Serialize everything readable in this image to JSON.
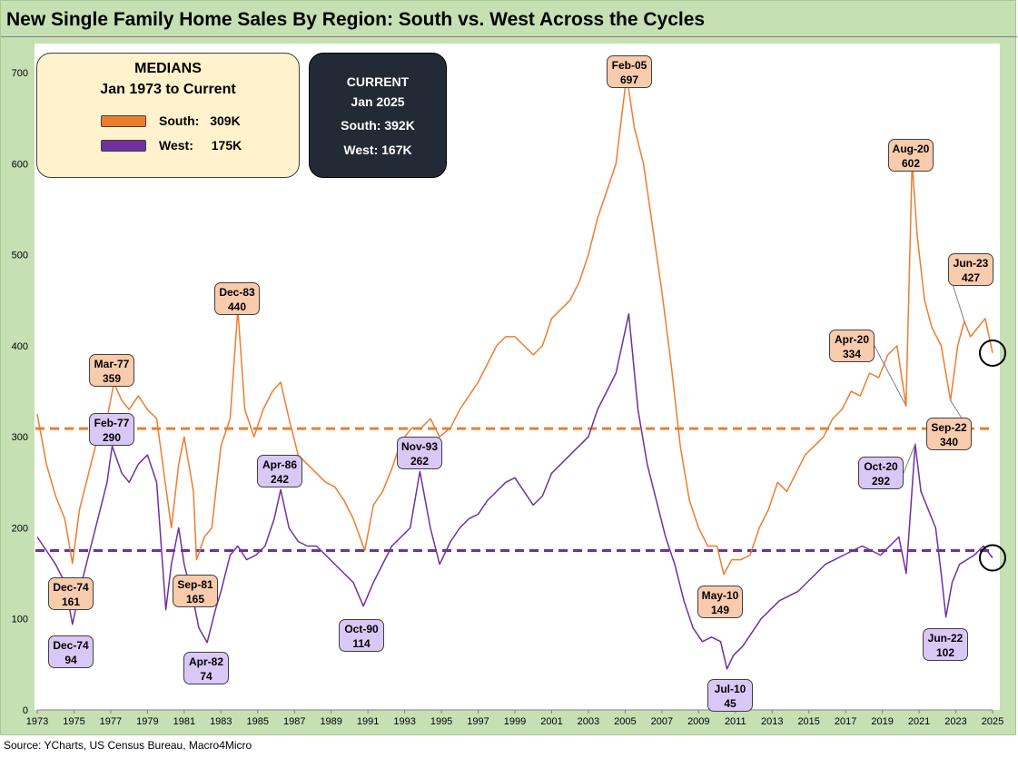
{
  "title": "New Single Family Home Sales By Region: South vs. West Across the Cycles",
  "source": "Source: YCharts, US Census Bureau, Macro4Micro",
  "medians_box": {
    "heading": "MEDIANS",
    "subheading": "Jan 1973 to Current",
    "south_label": "South:",
    "south_value": "309K",
    "west_label": "West:",
    "west_value": "175K"
  },
  "current_box": {
    "heading": "CURRENT",
    "date": "Jan 2025",
    "south": "South:  392K",
    "west": "West:  167K"
  },
  "colors": {
    "south": "#ed7d31",
    "west": "#7030a0",
    "south_label_bg": "#f8cbad",
    "west_label_bg": "#d9c8f5",
    "background": "#c6e0b4"
  },
  "chart_data": {
    "type": "line",
    "title": "New Single Family Home Sales By Region: South vs. West Across the Cycles",
    "xlabel": "",
    "ylabel": "",
    "xlim": [
      1973,
      2025
    ],
    "ylim": [
      0,
      740
    ],
    "y_ticks": [
      0,
      100,
      200,
      300,
      400,
      500,
      600,
      700
    ],
    "x_ticks": [
      1973,
      1975,
      1977,
      1979,
      1981,
      1983,
      1985,
      1987,
      1989,
      1991,
      1993,
      1995,
      1997,
      1999,
      2001,
      2003,
      2005,
      2007,
      2009,
      2011,
      2013,
      2015,
      2017,
      2019,
      2021,
      2023,
      2025
    ],
    "grid": false,
    "reference_lines": [
      {
        "series": "South",
        "value": 309,
        "style": "dashed"
      },
      {
        "series": "West",
        "value": 175,
        "style": "dashed"
      }
    ],
    "series": [
      {
        "name": "South",
        "color": "#ed7d31",
        "points": [
          [
            1973.0,
            325
          ],
          [
            1973.5,
            270
          ],
          [
            1974.0,
            235
          ],
          [
            1974.5,
            210
          ],
          [
            1974.92,
            161
          ],
          [
            1975.3,
            220
          ],
          [
            1975.8,
            260
          ],
          [
            1976.3,
            300
          ],
          [
            1976.8,
            320
          ],
          [
            1977.17,
            359
          ],
          [
            1977.6,
            340
          ],
          [
            1978.0,
            330
          ],
          [
            1978.5,
            345
          ],
          [
            1979.0,
            330
          ],
          [
            1979.5,
            320
          ],
          [
            1980.0,
            245
          ],
          [
            1980.3,
            200
          ],
          [
            1980.7,
            270
          ],
          [
            1981.0,
            300
          ],
          [
            1981.5,
            240
          ],
          [
            1981.67,
            165
          ],
          [
            1982.1,
            190
          ],
          [
            1982.5,
            200
          ],
          [
            1983.0,
            290
          ],
          [
            1983.5,
            320
          ],
          [
            1983.92,
            440
          ],
          [
            1984.3,
            330
          ],
          [
            1984.8,
            300
          ],
          [
            1985.3,
            330
          ],
          [
            1985.8,
            350
          ],
          [
            1986.25,
            360
          ],
          [
            1986.7,
            320
          ],
          [
            1987.2,
            280
          ],
          [
            1987.7,
            270
          ],
          [
            1988.2,
            260
          ],
          [
            1988.7,
            250
          ],
          [
            1989.2,
            245
          ],
          [
            1989.7,
            230
          ],
          [
            1990.2,
            210
          ],
          [
            1990.83,
            175
          ],
          [
            1991.3,
            225
          ],
          [
            1991.8,
            240
          ],
          [
            1992.3,
            265
          ],
          [
            1992.8,
            295
          ],
          [
            1993.4,
            310
          ],
          [
            1993.92,
            310
          ],
          [
            1994.4,
            320
          ],
          [
            1994.9,
            300
          ],
          [
            1995.5,
            310
          ],
          [
            1996.0,
            330
          ],
          [
            1996.5,
            345
          ],
          [
            1997.0,
            360
          ],
          [
            1997.5,
            380
          ],
          [
            1998.0,
            400
          ],
          [
            1998.5,
            410
          ],
          [
            1999.0,
            410
          ],
          [
            1999.5,
            400
          ],
          [
            2000.0,
            390
          ],
          [
            2000.5,
            400
          ],
          [
            2001.0,
            430
          ],
          [
            2001.5,
            440
          ],
          [
            2002.0,
            450
          ],
          [
            2002.5,
            470
          ],
          [
            2003.0,
            500
          ],
          [
            2003.5,
            540
          ],
          [
            2004.0,
            570
          ],
          [
            2004.5,
            600
          ],
          [
            2005.08,
            697
          ],
          [
            2005.5,
            640
          ],
          [
            2006.0,
            600
          ],
          [
            2006.5,
            530
          ],
          [
            2007.0,
            460
          ],
          [
            2007.5,
            380
          ],
          [
            2008.0,
            290
          ],
          [
            2008.5,
            230
          ],
          [
            2009.0,
            200
          ],
          [
            2009.5,
            180
          ],
          [
            2010.0,
            180
          ],
          [
            2010.37,
            149
          ],
          [
            2010.8,
            165
          ],
          [
            2011.3,
            165
          ],
          [
            2011.8,
            170
          ],
          [
            2012.3,
            200
          ],
          [
            2012.8,
            220
          ],
          [
            2013.3,
            250
          ],
          [
            2013.8,
            240
          ],
          [
            2014.3,
            260
          ],
          [
            2014.8,
            280
          ],
          [
            2015.3,
            290
          ],
          [
            2015.8,
            300
          ],
          [
            2016.3,
            320
          ],
          [
            2016.8,
            330
          ],
          [
            2017.3,
            350
          ],
          [
            2017.8,
            345
          ],
          [
            2018.3,
            370
          ],
          [
            2018.8,
            365
          ],
          [
            2019.3,
            390
          ],
          [
            2019.8,
            400
          ],
          [
            2020.29,
            334
          ],
          [
            2020.62,
            602
          ],
          [
            2020.9,
            520
          ],
          [
            2021.3,
            450
          ],
          [
            2021.7,
            420
          ],
          [
            2022.2,
            400
          ],
          [
            2022.71,
            340
          ],
          [
            2023.1,
            400
          ],
          [
            2023.46,
            427
          ],
          [
            2023.8,
            410
          ],
          [
            2024.2,
            420
          ],
          [
            2024.6,
            430
          ],
          [
            2025.0,
            392
          ]
        ]
      },
      {
        "name": "West",
        "color": "#7030a0",
        "points": [
          [
            1973.0,
            190
          ],
          [
            1973.5,
            175
          ],
          [
            1974.0,
            160
          ],
          [
            1974.5,
            140
          ],
          [
            1974.92,
            94
          ],
          [
            1975.3,
            130
          ],
          [
            1975.8,
            170
          ],
          [
            1976.3,
            210
          ],
          [
            1976.8,
            250
          ],
          [
            1977.08,
            290
          ],
          [
            1977.6,
            260
          ],
          [
            1978.0,
            250
          ],
          [
            1978.5,
            270
          ],
          [
            1979.0,
            280
          ],
          [
            1979.5,
            250
          ],
          [
            1980.0,
            110
          ],
          [
            1980.3,
            160
          ],
          [
            1980.7,
            200
          ],
          [
            1981.0,
            160
          ],
          [
            1981.5,
            120
          ],
          [
            1981.8,
            90
          ],
          [
            1982.25,
            74
          ],
          [
            1982.7,
            110
          ],
          [
            1983.0,
            130
          ],
          [
            1983.5,
            170
          ],
          [
            1983.92,
            180
          ],
          [
            1984.4,
            165
          ],
          [
            1984.9,
            170
          ],
          [
            1985.4,
            180
          ],
          [
            1985.9,
            210
          ],
          [
            1986.25,
            242
          ],
          [
            1986.7,
            200
          ],
          [
            1987.2,
            185
          ],
          [
            1987.7,
            180
          ],
          [
            1988.2,
            180
          ],
          [
            1988.7,
            170
          ],
          [
            1989.2,
            160
          ],
          [
            1989.7,
            150
          ],
          [
            1990.2,
            140
          ],
          [
            1990.75,
            114
          ],
          [
            1991.3,
            140
          ],
          [
            1991.8,
            160
          ],
          [
            1992.3,
            180
          ],
          [
            1992.8,
            190
          ],
          [
            1993.3,
            200
          ],
          [
            1993.83,
            262
          ],
          [
            1994.4,
            200
          ],
          [
            1994.9,
            160
          ],
          [
            1995.5,
            185
          ],
          [
            1996.0,
            200
          ],
          [
            1996.5,
            210
          ],
          [
            1997.0,
            215
          ],
          [
            1997.5,
            230
          ],
          [
            1998.0,
            240
          ],
          [
            1998.5,
            250
          ],
          [
            1999.0,
            255
          ],
          [
            1999.5,
            240
          ],
          [
            2000.0,
            225
          ],
          [
            2000.5,
            235
          ],
          [
            2001.0,
            260
          ],
          [
            2001.5,
            270
          ],
          [
            2002.0,
            280
          ],
          [
            2002.5,
            290
          ],
          [
            2003.0,
            300
          ],
          [
            2003.5,
            330
          ],
          [
            2004.0,
            350
          ],
          [
            2004.5,
            370
          ],
          [
            2005.2,
            435
          ],
          [
            2005.7,
            330
          ],
          [
            2006.2,
            270
          ],
          [
            2006.7,
            230
          ],
          [
            2007.2,
            190
          ],
          [
            2007.7,
            160
          ],
          [
            2008.2,
            120
          ],
          [
            2008.7,
            90
          ],
          [
            2009.2,
            75
          ],
          [
            2009.7,
            80
          ],
          [
            2010.2,
            75
          ],
          [
            2010.54,
            45
          ],
          [
            2010.9,
            60
          ],
          [
            2011.4,
            70
          ],
          [
            2011.9,
            85
          ],
          [
            2012.4,
            100
          ],
          [
            2012.9,
            110
          ],
          [
            2013.4,
            120
          ],
          [
            2013.9,
            125
          ],
          [
            2014.4,
            130
          ],
          [
            2014.9,
            140
          ],
          [
            2015.4,
            150
          ],
          [
            2015.9,
            160
          ],
          [
            2016.4,
            165
          ],
          [
            2016.9,
            170
          ],
          [
            2017.4,
            175
          ],
          [
            2017.9,
            180
          ],
          [
            2018.4,
            175
          ],
          [
            2018.9,
            170
          ],
          [
            2019.4,
            180
          ],
          [
            2019.9,
            190
          ],
          [
            2020.3,
            150
          ],
          [
            2020.79,
            292
          ],
          [
            2021.1,
            240
          ],
          [
            2021.5,
            220
          ],
          [
            2021.9,
            200
          ],
          [
            2022.2,
            150
          ],
          [
            2022.46,
            102
          ],
          [
            2022.8,
            140
          ],
          [
            2023.2,
            160
          ],
          [
            2023.6,
            165
          ],
          [
            2024.0,
            170
          ],
          [
            2024.5,
            180
          ],
          [
            2025.0,
            167
          ]
        ]
      }
    ],
    "annotations": [
      {
        "series": "South",
        "label": "Feb-05",
        "value": "697",
        "x": 2005.08,
        "y": 697
      },
      {
        "series": "South",
        "label": "Dec-83",
        "value": "440",
        "x": 1983.92,
        "y": 440
      },
      {
        "series": "South",
        "label": "Mar-77",
        "value": "359",
        "x": 1977.17,
        "y": 359
      },
      {
        "series": "South",
        "label": "Dec-74",
        "value": "161",
        "x": 1974.92,
        "y": 161
      },
      {
        "series": "South",
        "label": "Sep-81",
        "value": "165",
        "x": 1981.67,
        "y": 165
      },
      {
        "series": "South",
        "label": "May-10",
        "value": "149",
        "x": 2010.37,
        "y": 149
      },
      {
        "series": "South",
        "label": "Aug-20",
        "value": "602",
        "x": 2020.62,
        "y": 602
      },
      {
        "series": "South",
        "label": "Apr-20",
        "value": "334",
        "x": 2020.29,
        "y": 334
      },
      {
        "series": "South",
        "label": "Jun-23",
        "value": "427",
        "x": 2023.46,
        "y": 427
      },
      {
        "series": "South",
        "label": "Sep-22",
        "value": "340",
        "x": 2022.71,
        "y": 340
      },
      {
        "series": "West",
        "label": "Feb-77",
        "value": "290",
        "x": 1977.08,
        "y": 290
      },
      {
        "series": "West",
        "label": "Dec-74",
        "value": "94",
        "x": 1974.92,
        "y": 94
      },
      {
        "series": "West",
        "label": "Apr-82",
        "value": "74",
        "x": 1982.25,
        "y": 74
      },
      {
        "series": "West",
        "label": "Apr-86",
        "value": "242",
        "x": 1986.25,
        "y": 242
      },
      {
        "series": "West",
        "label": "Oct-90",
        "value": "114",
        "x": 1990.75,
        "y": 114
      },
      {
        "series": "West",
        "label": "Nov-93",
        "value": "262",
        "x": 1993.83,
        "y": 262
      },
      {
        "series": "West",
        "label": "Jul-10",
        "value": "45",
        "x": 2010.54,
        "y": 45
      },
      {
        "series": "West",
        "label": "Oct-20",
        "value": "292",
        "x": 2020.79,
        "y": 292
      },
      {
        "series": "West",
        "label": "Jun-22",
        "value": "102",
        "x": 2022.46,
        "y": 102
      }
    ]
  }
}
